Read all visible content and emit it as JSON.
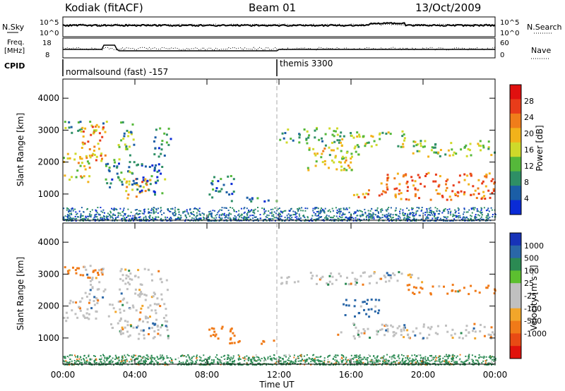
{
  "header": {
    "station": "Kodiak (fitACF)",
    "beam": "Beam 01",
    "date": "13/Oct/2009"
  },
  "strip_labels": {
    "nsky": "N.Sky",
    "nsearch": "N.Search",
    "freq": "Freq.",
    "freq_unit": "[MHz]",
    "nave": "Nave",
    "cpid": "CPID",
    "nsky_ticks": [
      "10^5",
      "10^0"
    ],
    "nsearch_ticks": [
      "10^5",
      "10^0"
    ],
    "freq_ticks": [
      "18",
      "8"
    ],
    "nave_ticks": [
      "60",
      "0"
    ]
  },
  "cpid": [
    {
      "label": "normalsound (fast) -157",
      "start_hour": 0
    },
    {
      "label": "themis 3300",
      "start_hour": 12
    }
  ],
  "colors": {
    "power_scale": [
      "#0a2bd6",
      "#1b5ea6",
      "#2e8f65",
      "#55b83a",
      "#cfd92a",
      "#f2b21a",
      "#f07d1a",
      "#e83c1a",
      "#e0100f"
    ],
    "velocity_scale": [
      "#1733b8",
      "#2a67a8",
      "#2b8a53",
      "#5cbf2f",
      "#c0c0c0",
      "#c0c0c0",
      "#f2a62a",
      "#f07a18",
      "#e84a14",
      "#e0120c"
    ],
    "ground_power": "#2e4fd0",
    "ground_velocity": "#5cbf2f"
  },
  "chart_data": [
    {
      "type": "heatmap",
      "name": "power",
      "ylabel": "Slant Range [km]",
      "xlim": [
        0,
        24
      ],
      "ylim": [
        180,
        4600
      ],
      "yticks": [
        1000,
        2000,
        3000,
        4000
      ],
      "colorbar": {
        "label": "Power [dB]",
        "ticks": [
          4,
          8,
          12,
          16,
          20,
          24,
          28
        ],
        "range": [
          0,
          32
        ]
      },
      "regions": [
        {
          "t": [
            0.0,
            1.5
          ],
          "r": [
            1400,
            2300
          ],
          "value": 18
        },
        {
          "t": [
            0.0,
            2.3
          ],
          "r": [
            2900,
            3300
          ],
          "value": 12
        },
        {
          "t": [
            1.0,
            2.4
          ],
          "r": [
            2000,
            3300
          ],
          "value": 24
        },
        {
          "t": [
            2.3,
            3.3
          ],
          "r": [
            1200,
            2100
          ],
          "value": 10
        },
        {
          "t": [
            3.0,
            4.0
          ],
          "r": [
            1300,
            3300
          ],
          "value": 12
        },
        {
          "t": [
            3.4,
            4.7
          ],
          "r": [
            850,
            1500
          ],
          "value": 24
        },
        {
          "t": [
            4.0,
            5.5
          ],
          "r": [
            1000,
            2100
          ],
          "value": 6
        },
        {
          "t": [
            4.5,
            5.7
          ],
          "r": [
            1300,
            1500
          ],
          "value": 20
        },
        {
          "t": [
            5.0,
            6.0
          ],
          "r": [
            2200,
            3100
          ],
          "value": 8
        },
        {
          "t": [
            8.0,
            9.5
          ],
          "r": [
            900,
            1600
          ],
          "value": 8
        },
        {
          "t": [
            9.0,
            12.0
          ],
          "r": [
            800,
            950
          ],
          "value": 6
        },
        {
          "t": [
            12.0,
            15.5
          ],
          "r": [
            2600,
            3100
          ],
          "value": 12
        },
        {
          "t": [
            13.5,
            16.5
          ],
          "r": [
            1700,
            2600
          ],
          "value": 18
        },
        {
          "t": [
            15.0,
            19.0
          ],
          "r": [
            2500,
            3000
          ],
          "value": 16
        },
        {
          "t": [
            16.0,
            17.0
          ],
          "r": [
            800,
            1200
          ],
          "value": 24
        },
        {
          "t": [
            17.5,
            24.0
          ],
          "r": [
            850,
            1700
          ],
          "value": 28
        },
        {
          "t": [
            19.0,
            24.0
          ],
          "r": [
            2200,
            2700
          ],
          "value": 16
        }
      ],
      "ground_band": {
        "t": [
          0,
          24
        ],
        "r": [
          180,
          600
        ],
        "value": 6
      }
    },
    {
      "type": "heatmap",
      "name": "velocity",
      "xlabel": "Time UT",
      "ylabel": "Slant Range [km]",
      "xlim": [
        0,
        24
      ],
      "ylim": [
        180,
        4600
      ],
      "xticks": [
        "00:00",
        "04:00",
        "08:00",
        "12:00",
        "16:00",
        "20:00",
        "00:00"
      ],
      "yticks": [
        1000,
        2000,
        3000,
        4000
      ],
      "colorbar": {
        "label": "Velocity [m s⁻¹]",
        "ticks": [
          1000,
          500,
          100,
          25,
          -25,
          -100,
          -500,
          -1000
        ]
      },
      "regions": [
        {
          "t": [
            0.0,
            2.0
          ],
          "r": [
            1500,
            2300
          ],
          "value": 0
        },
        {
          "t": [
            0.0,
            2.3
          ],
          "r": [
            2900,
            3300
          ],
          "value": -200
        },
        {
          "t": [
            1.0,
            2.3
          ],
          "r": [
            2200,
            3300
          ],
          "value": 0
        },
        {
          "t": [
            2.5,
            3.2
          ],
          "r": [
            1300,
            2100
          ],
          "value": 0
        },
        {
          "t": [
            3.0,
            5.8
          ],
          "r": [
            1000,
            3200
          ],
          "value": 0
        },
        {
          "t": [
            4.5,
            5.8
          ],
          "r": [
            1300,
            1500
          ],
          "value": 200
        },
        {
          "t": [
            8.0,
            9.5
          ],
          "r": [
            900,
            1400
          ],
          "value": -200
        },
        {
          "t": [
            9.0,
            12.0
          ],
          "r": [
            850,
            1000
          ],
          "value": -300
        },
        {
          "t": [
            12.0,
            20.0
          ],
          "r": [
            2700,
            3100
          ],
          "value": 0
        },
        {
          "t": [
            15.0,
            24.0
          ],
          "r": [
            1000,
            1500
          ],
          "value": 0
        },
        {
          "t": [
            15.5,
            17.5
          ],
          "r": [
            1700,
            2300
          ],
          "value": 150
        },
        {
          "t": [
            19.0,
            24.0
          ],
          "r": [
            2400,
            2700
          ],
          "value": -150
        }
      ],
      "ground_band": {
        "t": [
          0,
          24
        ],
        "r": [
          180,
          500
        ],
        "value": 50
      }
    }
  ]
}
